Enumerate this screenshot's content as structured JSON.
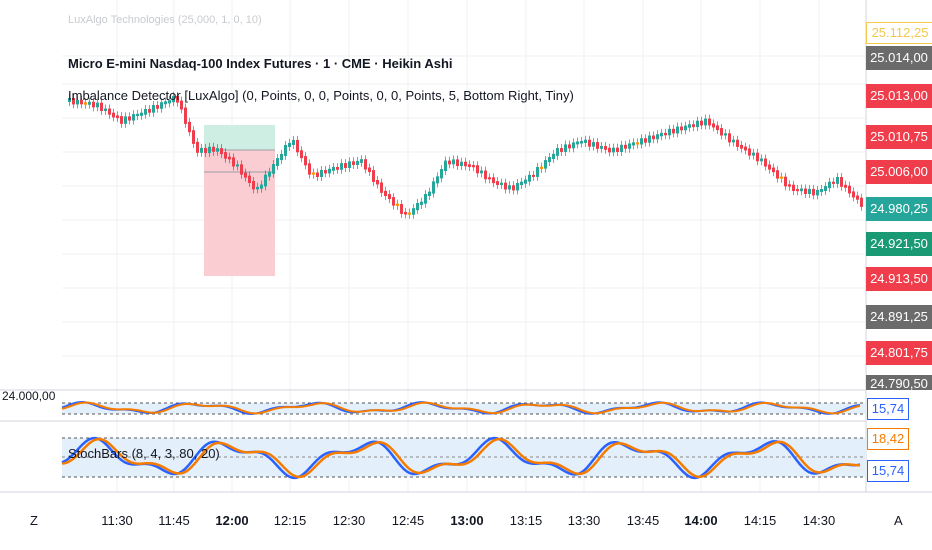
{
  "ghost_text": "LuxAlgo Technologies (25,000, 1, 0, 10)",
  "chart_header": {
    "title": "Micro E-mini Nasdaq-100 Index Futures · 1 · CME · Heikin Ashi",
    "indicator": "Imbalance Detector [LuxAlgo] (0, Points, 0, 0, Points, 0, 0, Points, 5, Bottom Right, Tiny)"
  },
  "price_scale": {
    "tags": [
      {
        "label": "25.112,25",
        "color": "#ffffff",
        "text_color": "#f2c94c"
      },
      {
        "label": "25.014,00",
        "color": "#6b6b6b",
        "text_color": "#ffffff"
      },
      {
        "label": "25.013,00",
        "color": "#ef3d4c",
        "text_color": "#ffffff"
      },
      {
        "label": "25.010,75",
        "color": "#ef3d4c",
        "text_color": "#ffffff"
      },
      {
        "label": "25.006,00",
        "color": "#ef3d4c",
        "text_color": "#ffffff"
      },
      {
        "label": "24.980,25",
        "color": "#26a69a",
        "text_color": "#ffffff"
      },
      {
        "label": "24.921,50",
        "color": "#1a9a74",
        "text_color": "#ffffff"
      },
      {
        "label": "24.913,50",
        "color": "#ef3d4c",
        "text_color": "#ffffff"
      },
      {
        "label": "24.891,25",
        "color": "#6b6b6b",
        "text_color": "#ffffff"
      },
      {
        "label": "24.801,75",
        "color": "#ef3d4c",
        "text_color": "#ffffff"
      },
      {
        "label": "24.790,50",
        "color": "#6b6b6b",
        "text_color": "#ffffff"
      }
    ],
    "cut_label": "24.000,00"
  },
  "oscillator_upper": {
    "value_tag": "15,74",
    "tag_color": "#2962ff"
  },
  "oscillator_lower": {
    "legend": "StochBars (8, 4, 3, 80, 20)",
    "tags": [
      {
        "label": "18,42",
        "color": "#f57c00"
      },
      {
        "label": "15,74",
        "color": "#2962ff"
      }
    ]
  },
  "time_axis": {
    "left_corner": "Z",
    "right_corner": "A",
    "labels": [
      {
        "text": "11:30",
        "bold": false
      },
      {
        "text": "11:45",
        "bold": false
      },
      {
        "text": "12:00",
        "bold": true
      },
      {
        "text": "12:15",
        "bold": false
      },
      {
        "text": "12:30",
        "bold": false
      },
      {
        "text": "12:45",
        "bold": false
      },
      {
        "text": "13:00",
        "bold": true
      },
      {
        "text": "13:15",
        "bold": false
      },
      {
        "text": "13:30",
        "bold": false
      },
      {
        "text": "13:45",
        "bold": false
      },
      {
        "text": "14:00",
        "bold": true
      },
      {
        "text": "14:15",
        "bold": false
      },
      {
        "text": "14:30",
        "bold": false
      }
    ]
  },
  "colors": {
    "bull": "#26a69a",
    "bear": "#ef3d4c",
    "imbalance": "#ff9800",
    "stoch_k": "#2962ff",
    "stoch_d": "#f57c00"
  }
}
